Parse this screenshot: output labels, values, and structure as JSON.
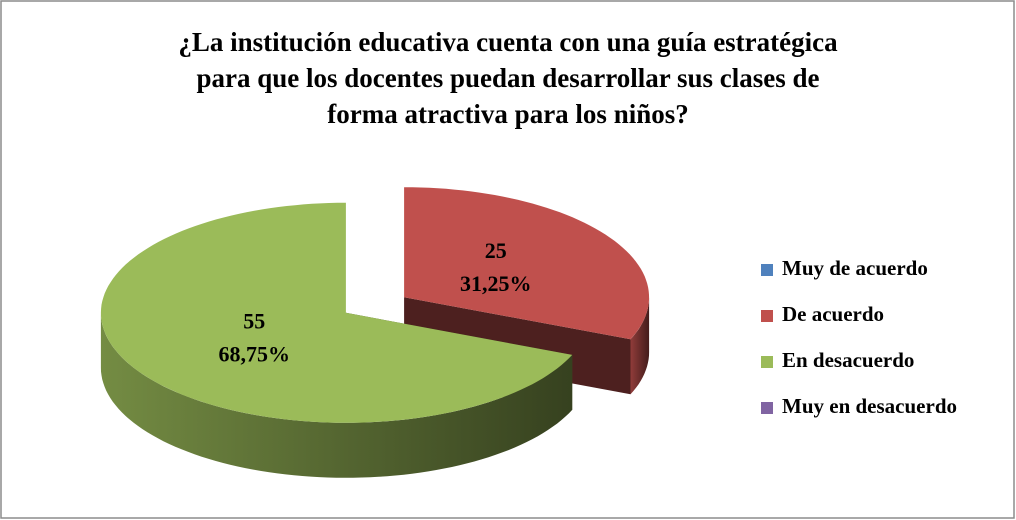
{
  "chart_data": {
    "type": "pie3d",
    "title": "¿La institución educativa cuenta con una guía estratégica\npara que los docentes puedan desarrollar sus clases de\nforma atractiva para los niños?",
    "categories": [
      "Muy de acuerdo",
      "De acuerdo",
      "En desacuerdo",
      "Muy en desacuerdo"
    ],
    "values": [
      0,
      25,
      55,
      0
    ],
    "percentages": [
      0,
      31.25,
      68.75,
      0
    ],
    "percentage_labels": [
      null,
      "31,25%",
      "68,75%",
      null
    ],
    "colors": [
      "#4f81bd",
      "#c0504d",
      "#9bbb59",
      "#8064a2"
    ],
    "legend": "right"
  }
}
